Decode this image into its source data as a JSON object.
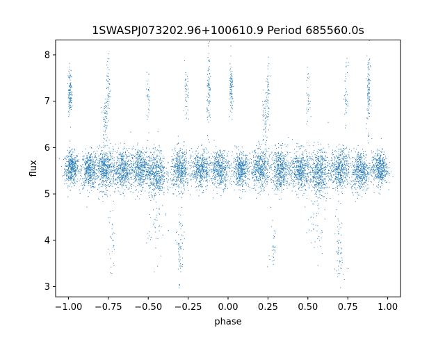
{
  "chart_data": {
    "type": "scatter",
    "title": "1SWASPJ073202.96+100610.9 Period 685560.0s",
    "xlabel": "phase",
    "ylabel": "flux",
    "xlim": [
      -1.08,
      1.08
    ],
    "ylim": [
      2.78,
      8.32
    ],
    "xticks": [
      -1.0,
      -0.75,
      -0.5,
      -0.25,
      0.0,
      0.25,
      0.5,
      0.75,
      1.0
    ],
    "xtick_labels": [
      "−1.00",
      "−0.75",
      "−0.50",
      "−0.25",
      "0.00",
      "0.25",
      "0.50",
      "0.75",
      "1.00"
    ],
    "yticks": [
      3,
      4,
      5,
      6,
      7,
      8
    ],
    "ytick_labels": [
      "3",
      "4",
      "5",
      "6",
      "7",
      "8"
    ],
    "grid": false,
    "point_color": "#1f77b4",
    "series": [
      {
        "clusters": [
          {
            "x": -0.98,
            "y": 5.55,
            "spread_x": 0.022,
            "spread_y": 0.18,
            "n": 420
          },
          {
            "x": -0.87,
            "y": 5.52,
            "spread_x": 0.025,
            "spread_y": 0.2,
            "n": 420
          },
          {
            "x": -0.77,
            "y": 5.52,
            "spread_x": 0.03,
            "spread_y": 0.22,
            "n": 480
          },
          {
            "x": -0.66,
            "y": 5.52,
            "spread_x": 0.03,
            "spread_y": 0.22,
            "n": 460
          },
          {
            "x": -0.55,
            "y": 5.55,
            "spread_x": 0.03,
            "spread_y": 0.22,
            "n": 460
          },
          {
            "x": -0.45,
            "y": 5.45,
            "spread_x": 0.03,
            "spread_y": 0.25,
            "n": 480
          },
          {
            "x": -0.3,
            "y": 5.52,
            "spread_x": 0.03,
            "spread_y": 0.22,
            "n": 460
          },
          {
            "x": -0.17,
            "y": 5.52,
            "spread_x": 0.03,
            "spread_y": 0.2,
            "n": 440
          },
          {
            "x": -0.05,
            "y": 5.55,
            "spread_x": 0.03,
            "spread_y": 0.2,
            "n": 440
          },
          {
            "x": 0.08,
            "y": 5.52,
            "spread_x": 0.025,
            "spread_y": 0.18,
            "n": 420
          },
          {
            "x": 0.2,
            "y": 5.52,
            "spread_x": 0.03,
            "spread_y": 0.22,
            "n": 460
          },
          {
            "x": 0.33,
            "y": 5.52,
            "spread_x": 0.03,
            "spread_y": 0.22,
            "n": 460
          },
          {
            "x": 0.45,
            "y": 5.52,
            "spread_x": 0.03,
            "spread_y": 0.22,
            "n": 460
          },
          {
            "x": 0.57,
            "y": 5.47,
            "spread_x": 0.03,
            "spread_y": 0.25,
            "n": 480
          },
          {
            "x": 0.7,
            "y": 5.52,
            "spread_x": 0.03,
            "spread_y": 0.22,
            "n": 460
          },
          {
            "x": 0.83,
            "y": 5.5,
            "spread_x": 0.03,
            "spread_y": 0.22,
            "n": 460
          },
          {
            "x": 0.95,
            "y": 5.55,
            "spread_x": 0.025,
            "spread_y": 0.18,
            "n": 420
          },
          {
            "x": -0.99,
            "y": 7.2,
            "spread_x": 0.006,
            "spread_y": 0.25,
            "n": 120
          },
          {
            "x": -0.77,
            "y": 6.6,
            "spread_x": 0.008,
            "spread_y": 0.3,
            "n": 60
          },
          {
            "x": -0.75,
            "y": 7.3,
            "spread_x": 0.006,
            "spread_y": 0.35,
            "n": 50
          },
          {
            "x": -0.5,
            "y": 7.1,
            "spread_x": 0.006,
            "spread_y": 0.25,
            "n": 30
          },
          {
            "x": -0.26,
            "y": 7.1,
            "spread_x": 0.006,
            "spread_y": 0.35,
            "n": 40
          },
          {
            "x": -0.12,
            "y": 7.2,
            "spread_x": 0.006,
            "spread_y": 0.4,
            "n": 90
          },
          {
            "x": 0.02,
            "y": 7.2,
            "spread_x": 0.006,
            "spread_y": 0.3,
            "n": 90
          },
          {
            "x": 0.23,
            "y": 6.6,
            "spread_x": 0.008,
            "spread_y": 0.3,
            "n": 50
          },
          {
            "x": 0.25,
            "y": 7.3,
            "spread_x": 0.006,
            "spread_y": 0.4,
            "n": 50
          },
          {
            "x": 0.5,
            "y": 7.1,
            "spread_x": 0.006,
            "spread_y": 0.25,
            "n": 30
          },
          {
            "x": 0.74,
            "y": 7.1,
            "spread_x": 0.006,
            "spread_y": 0.35,
            "n": 40
          },
          {
            "x": 0.88,
            "y": 7.2,
            "spread_x": 0.006,
            "spread_y": 0.4,
            "n": 100
          },
          {
            "x": -0.3,
            "y": 3.8,
            "spread_x": 0.012,
            "spread_y": 0.45,
            "n": 60
          },
          {
            "x": -0.73,
            "y": 3.9,
            "spread_x": 0.012,
            "spread_y": 0.4,
            "n": 30
          },
          {
            "x": 0.7,
            "y": 3.8,
            "spread_x": 0.012,
            "spread_y": 0.45,
            "n": 60
          },
          {
            "x": 0.28,
            "y": 3.9,
            "spread_x": 0.012,
            "spread_y": 0.4,
            "n": 30
          },
          {
            "x": -0.45,
            "y": 4.3,
            "spread_x": 0.03,
            "spread_y": 0.35,
            "n": 40
          },
          {
            "x": 0.55,
            "y": 4.3,
            "spread_x": 0.03,
            "spread_y": 0.35,
            "n": 40
          }
        ]
      }
    ]
  }
}
